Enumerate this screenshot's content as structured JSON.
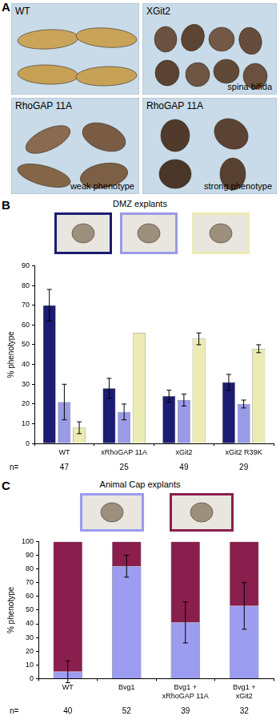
{
  "panel_a": {
    "panel_label": "A",
    "images": [
      {
        "label": "WT"
      },
      {
        "label": "XGit2",
        "caption": "spina bifida"
      },
      {
        "label": "RhoGAP 11A",
        "caption": "weak phenotype"
      },
      {
        "label": "RhoGAP 11A",
        "caption": "strong phenotype"
      }
    ]
  },
  "chart_data": [
    {
      "type": "bar",
      "panel_label": "B",
      "title": "DMZ explants",
      "categories": [
        "WT",
        "xRhoGAP 11A",
        "xGit2",
        "xGit2 R39K"
      ],
      "n_label": "n=",
      "n": [
        47,
        25,
        49,
        29
      ],
      "y_label": "% phenotype",
      "series": [
        {
          "color": "#1c1c72",
          "values": [
            70,
            28,
            24,
            31
          ],
          "errors": [
            8,
            5,
            3,
            4
          ]
        },
        {
          "color": "#9a9ae6",
          "values": [
            21,
            16,
            22,
            20
          ],
          "errors": [
            9,
            4,
            3,
            2
          ]
        },
        {
          "color": "#ecebb4",
          "values": [
            8,
            56,
            53,
            48
          ],
          "errors": [
            3,
            0,
            3,
            2
          ]
        }
      ],
      "ylim": [
        0,
        90
      ],
      "yticks": [
        0,
        10,
        20,
        30,
        40,
        50,
        60,
        70,
        80,
        90
      ],
      "grid": false,
      "stacked": false
    },
    {
      "type": "bar",
      "panel_label": "C",
      "title": "Animal Cap explants",
      "categories": [
        "WT",
        "Bvg1",
        "Bvg1 + xRhoGAP 11A",
        "Bvg1 + xGit2"
      ],
      "n_label": "n=",
      "n": [
        40,
        52,
        39,
        32
      ],
      "y_label": "% phenotype",
      "series": [
        {
          "color": "#9c9cf0",
          "values": [
            5,
            82,
            41,
            53
          ],
          "errors": [
            8,
            8,
            15,
            17
          ]
        },
        {
          "color": "#8a1f4e",
          "values": [
            95,
            18,
            59,
            47
          ]
        }
      ],
      "ylim": [
        0,
        100
      ],
      "yticks": [
        0,
        10,
        20,
        30,
        40,
        50,
        60,
        70,
        80,
        90,
        100
      ],
      "grid": false,
      "stacked": true
    }
  ]
}
